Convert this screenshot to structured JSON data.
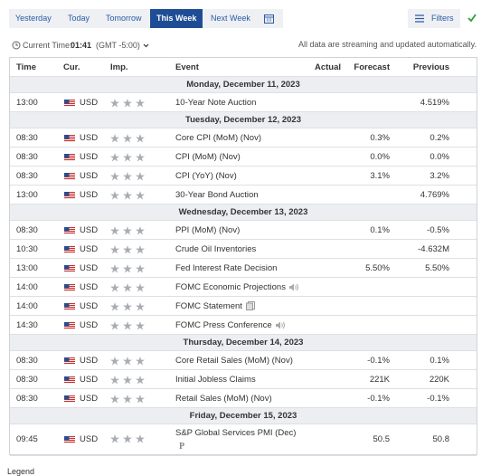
{
  "tabs": [
    "Yesterday",
    "Today",
    "Tomorrow",
    "This Week",
    "Next Week"
  ],
  "active_tab": 3,
  "filters": "Filters",
  "time_label": "Current Time:",
  "time_value": "01:41",
  "timezone": "(GMT -5:00)",
  "streaming_note": "All data are streaming and updated automatically.",
  "table": {
    "headers": [
      "Time",
      "Cur.",
      "Imp.",
      "Event",
      "Actual",
      "Forecast",
      "Previous"
    ],
    "days": [
      {
        "date": "Monday, December 11, 2023",
        "rows": [
          {
            "time": "13:00",
            "currency": "USD",
            "event": "10-Year Note Auction",
            "previous": "4.519%"
          }
        ]
      },
      {
        "date": "Tuesday, December 12, 2023",
        "rows": [
          {
            "time": "08:30",
            "currency": "USD",
            "event": "Core CPI (MoM) (Nov)",
            "forecast": "0.3%",
            "previous": "0.2%"
          },
          {
            "time": "08:30",
            "currency": "USD",
            "event": "CPI (MoM) (Nov)",
            "forecast": "0.0%",
            "previous": "0.0%"
          },
          {
            "time": "08:30",
            "currency": "USD",
            "event": "CPI (YoY) (Nov)",
            "forecast": "3.1%",
            "previous": "3.2%"
          },
          {
            "time": "13:00",
            "currency": "USD",
            "event": "30-Year Bond Auction",
            "previous": "4.769%"
          }
        ]
      },
      {
        "date": "Wednesday, December 13, 2023",
        "rows": [
          {
            "time": "08:30",
            "currency": "USD",
            "event": "PPI (MoM) (Nov)",
            "forecast": "0.1%",
            "previous": "-0.5%"
          },
          {
            "time": "10:30",
            "currency": "USD",
            "event": "Crude Oil Inventories",
            "previous": "-4.632M"
          },
          {
            "time": "13:00",
            "currency": "USD",
            "event": "Fed Interest Rate Decision",
            "forecast": "5.50%",
            "previous": "5.50%"
          },
          {
            "time": "14:00",
            "currency": "USD",
            "event": "FOMC Economic Projections"
          },
          {
            "time": "14:00",
            "currency": "USD",
            "event": "FOMC Statement"
          },
          {
            "time": "14:30",
            "currency": "USD",
            "event": "FOMC Press Conference"
          }
        ]
      },
      {
        "date": "Thursday, December 14, 2023",
        "rows": [
          {
            "time": "08:30",
            "currency": "USD",
            "event": "Core Retail Sales (MoM) (Nov)",
            "forecast": "-0.1%",
            "previous": "0.1%"
          },
          {
            "time": "08:30",
            "currency": "USD",
            "event": "Initial Jobless Claims",
            "forecast": "221K",
            "previous": "220K"
          },
          {
            "time": "08:30",
            "currency": "USD",
            "event": "Retail Sales (MoM) (Nov)",
            "forecast": "-0.1%",
            "previous": "-0.1%"
          }
        ]
      },
      {
        "date": "Friday, December 15, 2023",
        "rows": [
          {
            "time": "09:45",
            "currency": "USD",
            "event": "S&P Global Services PMI (Dec)",
            "badge": "P",
            "forecast": "50.5",
            "previous": "50.8"
          }
        ]
      }
    ]
  },
  "legend": "Legend"
}
